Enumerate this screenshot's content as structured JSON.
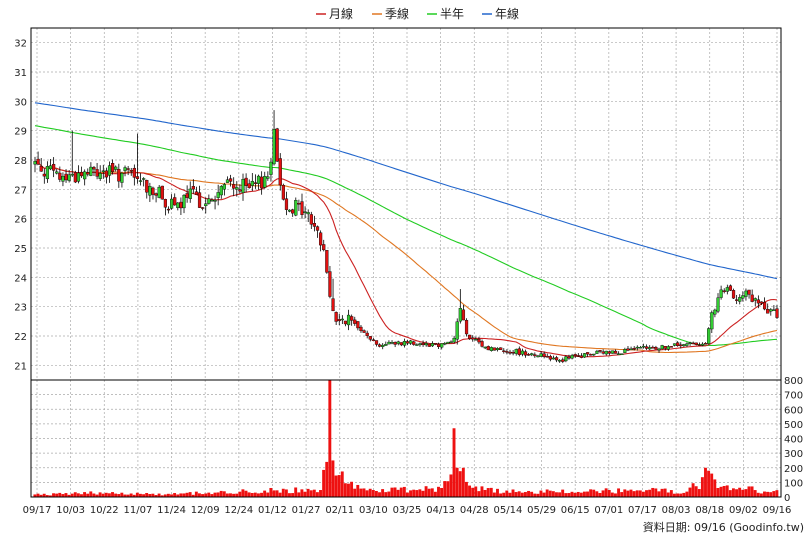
{
  "chart_data": {
    "type": "candlestick",
    "colors": {
      "up": "#33cc33",
      "down": "#e01010",
      "volume": "#ee1111",
      "ma_month": "#cc2222",
      "ma_quarter": "#e07722",
      "ma_half_year": "#22cc22",
      "ma_year": "#2266cc",
      "grid": "#aaaaaa",
      "frame": "#000000"
    },
    "legend": [
      {
        "key": "ma_month",
        "label": "月線"
      },
      {
        "key": "ma_quarter",
        "label": "季線"
      },
      {
        "key": "ma_half_year",
        "label": "半年"
      },
      {
        "key": "ma_year",
        "label": "年線"
      }
    ],
    "price_axis": {
      "ticks": [
        21,
        22,
        23,
        24,
        25,
        26,
        27,
        28,
        29,
        30,
        31,
        32
      ],
      "range": [
        20.5,
        32.5
      ]
    },
    "volume_axis": {
      "ticks": [
        0,
        100,
        200,
        300,
        400,
        500,
        600,
        700,
        800
      ],
      "range": [
        0,
        800
      ]
    },
    "x_ticks": [
      "09/17",
      "10/03",
      "10/22",
      "11/07",
      "11/24",
      "12/09",
      "12/24",
      "01/12",
      "01/27",
      "02/11",
      "03/10",
      "03/25",
      "04/13",
      "04/28",
      "05/14",
      "05/29",
      "06/15",
      "07/01",
      "07/17",
      "08/03",
      "08/18",
      "09/02",
      "09/16"
    ],
    "footer": "資料日期: 09/16  (Goodinfo.tw)",
    "price_anchors": [
      [
        0,
        27.9
      ],
      [
        8,
        27.4
      ],
      [
        20,
        27.6
      ],
      [
        30,
        27.5
      ],
      [
        38,
        27.0
      ],
      [
        45,
        26.3
      ],
      [
        50,
        26.8
      ],
      [
        56,
        26.5
      ],
      [
        62,
        27.2
      ],
      [
        70,
        27.0
      ],
      [
        75,
        27.5
      ],
      [
        77,
        28.8
      ],
      [
        80,
        26.6
      ],
      [
        86,
        26.3
      ],
      [
        90,
        25.8
      ],
      [
        93,
        24.9
      ],
      [
        95,
        23.4
      ],
      [
        97,
        22.4
      ],
      [
        100,
        22.6
      ],
      [
        106,
        22.2
      ],
      [
        110,
        21.7
      ],
      [
        120,
        21.8
      ],
      [
        130,
        21.7
      ],
      [
        135,
        21.9
      ],
      [
        137,
        23.0
      ],
      [
        139,
        22.0
      ],
      [
        145,
        21.6
      ],
      [
        160,
        21.4
      ],
      [
        170,
        21.2
      ],
      [
        180,
        21.4
      ],
      [
        190,
        21.5
      ],
      [
        200,
        21.6
      ],
      [
        210,
        21.7
      ],
      [
        216,
        21.8
      ],
      [
        218,
        22.6
      ],
      [
        221,
        23.5
      ],
      [
        229,
        23.4
      ],
      [
        233,
        23.1
      ],
      [
        236,
        22.8
      ]
    ],
    "spikes": [
      [
        12,
        28.1,
        29.0
      ],
      [
        33,
        28.5,
        28.9
      ],
      [
        77,
        27.8,
        29.7
      ],
      [
        96,
        23.9,
        23.95
      ],
      [
        137,
        23.5,
        23.6
      ]
    ],
    "volume_anchors": [
      [
        0,
        15
      ],
      [
        20,
        30
      ],
      [
        40,
        20
      ],
      [
        60,
        30
      ],
      [
        70,
        40
      ],
      [
        80,
        50
      ],
      [
        92,
        35
      ],
      [
        94,
        240
      ],
      [
        95,
        800
      ],
      [
        96,
        250
      ],
      [
        98,
        170
      ],
      [
        100,
        120
      ],
      [
        103,
        70
      ],
      [
        110,
        45
      ],
      [
        120,
        55
      ],
      [
        130,
        60
      ],
      [
        134,
        130
      ],
      [
        135,
        470
      ],
      [
        136,
        200
      ],
      [
        138,
        150
      ],
      [
        140,
        60
      ],
      [
        150,
        40
      ],
      [
        170,
        35
      ],
      [
        190,
        45
      ],
      [
        210,
        40
      ],
      [
        214,
        90
      ],
      [
        216,
        200
      ],
      [
        217,
        140
      ],
      [
        219,
        110
      ],
      [
        225,
        70
      ],
      [
        230,
        55
      ],
      [
        236,
        35
      ]
    ]
  }
}
